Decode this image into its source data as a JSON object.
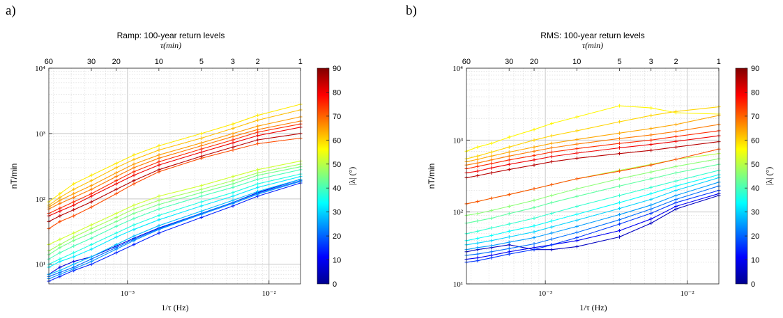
{
  "figure": {
    "panels": [
      {
        "letter": "a)",
        "title": "Ramp: 100-year return levels",
        "top_axis_label": "τ(min)"
      },
      {
        "letter": "b)",
        "title": "RMS: 100-year return levels",
        "top_axis_label": "τ(min)"
      }
    ],
    "x_label": "1/τ (Hz)",
    "y_label": "nT/min",
    "colorbar_label": "|λ| (°)",
    "top_ticks": [
      "60",
      "30",
      "20",
      "10",
      "5",
      "3",
      "2",
      "1"
    ],
    "bottom_ticks": [
      "10⁻³",
      "10⁻²"
    ],
    "y_ticks_a": [
      "10¹",
      "10²",
      "10³",
      "10⁴"
    ],
    "y_ticks_b": [
      "10¹",
      "10²",
      "10³",
      "10⁴"
    ],
    "colorbar_ticks": [
      "0",
      "10",
      "20",
      "30",
      "40",
      "50",
      "60",
      "70",
      "80",
      "90"
    ]
  },
  "chart_data": [
    {
      "type": "line",
      "title": "Ramp: 100-year return levels",
      "xlabel": "1/τ (Hz)",
      "ylabel": "nT/min",
      "top_axis_label": "τ(min)",
      "x_scale": "log",
      "y_scale": "log",
      "xlim": [
        0.000278,
        0.0167
      ],
      "ylim": [
        5,
        10000
      ],
      "grid": true,
      "top_axis_ticks_min": [
        60,
        30,
        20,
        10,
        5,
        3,
        2,
        1
      ],
      "colorbar": {
        "label": "|λ| (°)",
        "range": [
          0,
          90
        ],
        "colormap": "jet"
      },
      "x": [
        0.000278,
        0.000333,
        0.000417,
        0.000556,
        0.000833,
        0.00111,
        0.00167,
        0.00333,
        0.00556,
        0.00833,
        0.0167
      ],
      "series": [
        {
          "latitude": 85,
          "values": [
            45,
            55,
            68,
            90,
            140,
            190,
            280,
            450,
            620,
            800,
            1000
          ]
        },
        {
          "latitude": 80,
          "values": [
            55,
            65,
            80,
            110,
            170,
            230,
            330,
            520,
            720,
            930,
            1250
          ]
        },
        {
          "latitude": 75,
          "values": [
            60,
            72,
            90,
            120,
            190,
            260,
            370,
            580,
            800,
            1050,
            1400
          ]
        },
        {
          "latitude": 72,
          "values": [
            35,
            45,
            55,
            75,
            120,
            170,
            260,
            420,
            560,
            700,
            850
          ]
        },
        {
          "latitude": 68,
          "values": [
            70,
            85,
            105,
            140,
            220,
            300,
            420,
            650,
            900,
            1150,
            1550
          ]
        },
        {
          "latitude": 65,
          "values": [
            75,
            95,
            120,
            160,
            250,
            340,
            470,
            720,
            1000,
            1300,
            1800
          ]
        },
        {
          "latitude": 62,
          "values": [
            80,
            105,
            140,
            190,
            300,
            400,
            560,
            850,
            1200,
            1600,
            2300
          ]
        },
        {
          "latitude": 58,
          "values": [
            90,
            120,
            170,
            230,
            350,
            470,
            650,
            1000,
            1400,
            1900,
            2800
          ]
        },
        {
          "latitude": 52,
          "values": [
            20,
            24,
            30,
            40,
            60,
            80,
            110,
            160,
            220,
            280,
            380
          ]
        },
        {
          "latitude": 48,
          "values": [
            16,
            20,
            26,
            35,
            52,
            70,
            95,
            140,
            190,
            250,
            340
          ]
        },
        {
          "latitude": 44,
          "values": [
            14,
            18,
            23,
            30,
            45,
            60,
            82,
            125,
            170,
            230,
            310
          ]
        },
        {
          "latitude": 40,
          "values": [
            12,
            15,
            19,
            25,
            38,
            50,
            70,
            110,
            150,
            200,
            280
          ]
        },
        {
          "latitude": 36,
          "values": [
            10,
            12,
            15,
            20,
            30,
            40,
            56,
            90,
            125,
            170,
            240
          ]
        },
        {
          "latitude": 32,
          "values": [
            9,
            11,
            13,
            17,
            26,
            34,
            48,
            78,
            110,
            150,
            220
          ]
        },
        {
          "latitude": 28,
          "values": [
            7,
            8,
            10,
            13,
            20,
            27,
            39,
            65,
            95,
            130,
            200
          ]
        },
        {
          "latitude": 24,
          "values": [
            6,
            7,
            8.5,
            11,
            17,
            23,
            34,
            58,
            85,
            118,
            185
          ]
        },
        {
          "latitude": 20,
          "values": [
            6.5,
            7.5,
            9,
            12,
            18,
            24,
            35,
            60,
            88,
            122,
            190
          ]
        },
        {
          "latitude": 14,
          "values": [
            5.5,
            6.5,
            8,
            10,
            15,
            20,
            30,
            52,
            78,
            110,
            175
          ]
        },
        {
          "latitude": 8,
          "values": [
            7,
            9,
            11,
            13,
            19,
            25,
            36,
            60,
            88,
            125,
            200
          ]
        }
      ]
    },
    {
      "type": "line",
      "title": "RMS: 100-year return levels",
      "xlabel": "1/τ (Hz)",
      "ylabel": "nT/min",
      "top_axis_label": "τ(min)",
      "x_scale": "log",
      "y_scale": "log",
      "xlim": [
        0.000278,
        0.0167
      ],
      "ylim": [
        10,
        10000
      ],
      "grid": true,
      "top_axis_ticks_min": [
        60,
        30,
        20,
        10,
        5,
        3,
        2,
        1
      ],
      "colorbar": {
        "label": "|λ| (°)",
        "range": [
          0,
          90
        ],
        "colormap": "jet"
      },
      "x": [
        0.000278,
        0.000333,
        0.000417,
        0.000556,
        0.000833,
        0.00111,
        0.00167,
        0.00333,
        0.00556,
        0.00833,
        0.0167
      ],
      "series": [
        {
          "latitude": 85,
          "values": [
            300,
            320,
            350,
            390,
            450,
            500,
            560,
            650,
            720,
            800,
            950
          ]
        },
        {
          "latitude": 80,
          "values": [
            350,
            370,
            410,
            460,
            530,
            590,
            660,
            780,
            870,
            960,
            1150
          ]
        },
        {
          "latitude": 75,
          "values": [
            400,
            430,
            470,
            530,
            610,
            680,
            760,
            900,
            1000,
            1120,
            1350
          ]
        },
        {
          "latitude": 72,
          "values": [
            130,
            140,
            155,
            175,
            210,
            240,
            290,
            370,
            450,
            540,
            750
          ]
        },
        {
          "latitude": 68,
          "values": [
            450,
            480,
            530,
            600,
            700,
            780,
            880,
            1050,
            1180,
            1320,
            1650
          ]
        },
        {
          "latitude": 64,
          "values": [
            500,
            540,
            600,
            680,
            800,
            900,
            1020,
            1250,
            1450,
            1650,
            2200
          ]
        },
        {
          "latitude": 60,
          "values": [
            550,
            600,
            680,
            800,
            1000,
            1150,
            1350,
            1800,
            2200,
            2500,
            2900
          ]
        },
        {
          "latitude": 57,
          "values": [
            700,
            800,
            900,
            1100,
            1400,
            1700,
            2100,
            3000,
            2800,
            2400,
            2300
          ]
        },
        {
          "latitude": 50,
          "values": [
            130,
            140,
            155,
            175,
            210,
            240,
            290,
            380,
            460,
            540,
            650
          ]
        },
        {
          "latitude": 46,
          "values": [
            90,
            95,
            105,
            120,
            145,
            170,
            210,
            290,
            360,
            430,
            550
          ]
        },
        {
          "latitude": 42,
          "values": [
            70,
            75,
            82,
            95,
            115,
            135,
            165,
            230,
            290,
            350,
            460
          ]
        },
        {
          "latitude": 38,
          "values": [
            50,
            54,
            60,
            68,
            82,
            96,
            120,
            170,
            220,
            270,
            380
          ]
        },
        {
          "latitude": 34,
          "values": [
            40,
            43,
            47,
            54,
            64,
            75,
            93,
            135,
            180,
            230,
            330
          ]
        },
        {
          "latitude": 30,
          "values": [
            35,
            37,
            40,
            45,
            53,
            62,
            77,
            112,
            150,
            200,
            300
          ]
        },
        {
          "latitude": 25,
          "values": [
            30,
            32,
            34,
            38,
            44,
            51,
            63,
            92,
            125,
            170,
            260
          ]
        },
        {
          "latitude": 21,
          "values": [
            25,
            26,
            28,
            31,
            36,
            42,
            52,
            78,
            110,
            150,
            230
          ]
        },
        {
          "latitude": 16,
          "values": [
            20,
            21,
            23,
            26,
            30,
            35,
            44,
            68,
            96,
            135,
            200
          ]
        },
        {
          "latitude": 10,
          "values": [
            22,
            23,
            25,
            28,
            32,
            35,
            40,
            55,
            80,
            120,
            180
          ]
        },
        {
          "latitude": 5,
          "values": [
            28,
            30,
            32,
            35,
            30,
            30,
            33,
            45,
            70,
            110,
            170
          ]
        }
      ]
    }
  ]
}
